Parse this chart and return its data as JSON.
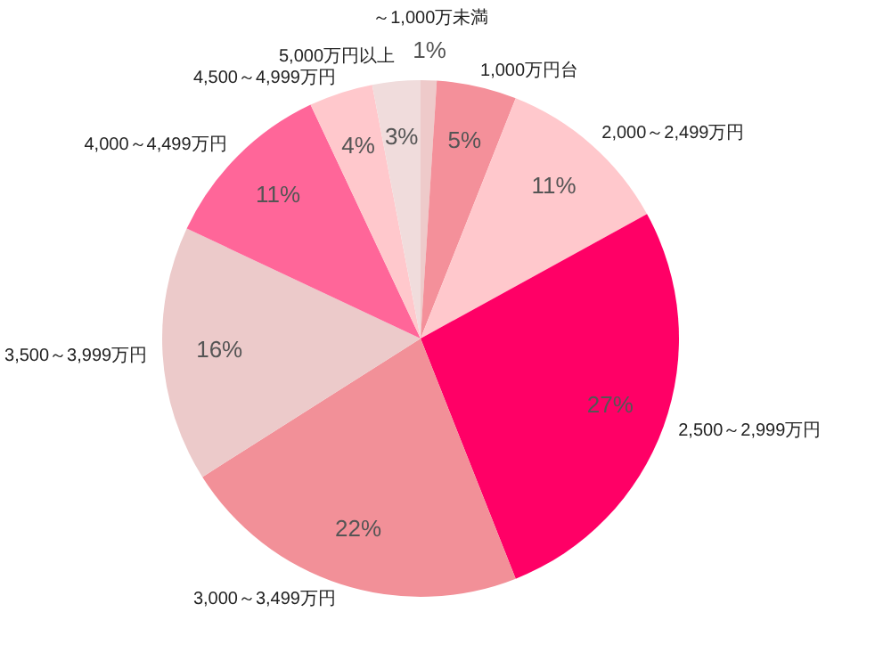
{
  "chart_data": {
    "type": "pie",
    "categories": [
      "～1,000万未満",
      "1,000万円台",
      "2,000～2,499万円",
      "2,500～2,999万円",
      "3,000～3,499万円",
      "3,500～3,999万円",
      "4,000～4,499万円",
      "4,500～4,999万円",
      "5,000万円以上"
    ],
    "values": [
      1,
      5,
      11,
      27,
      22,
      16,
      11,
      4,
      3
    ],
    "colors": [
      "#eecaca",
      "#f4909a",
      "#ffc8cc",
      "#ff0066",
      "#f29098",
      "#eccaca",
      "#ff6699",
      "#ffc8cc",
      "#f0dcdc"
    ],
    "value_labels": [
      "1%",
      "5%",
      "11%",
      "27%",
      "22%",
      "16%",
      "11%",
      "4%",
      "3%"
    ]
  }
}
